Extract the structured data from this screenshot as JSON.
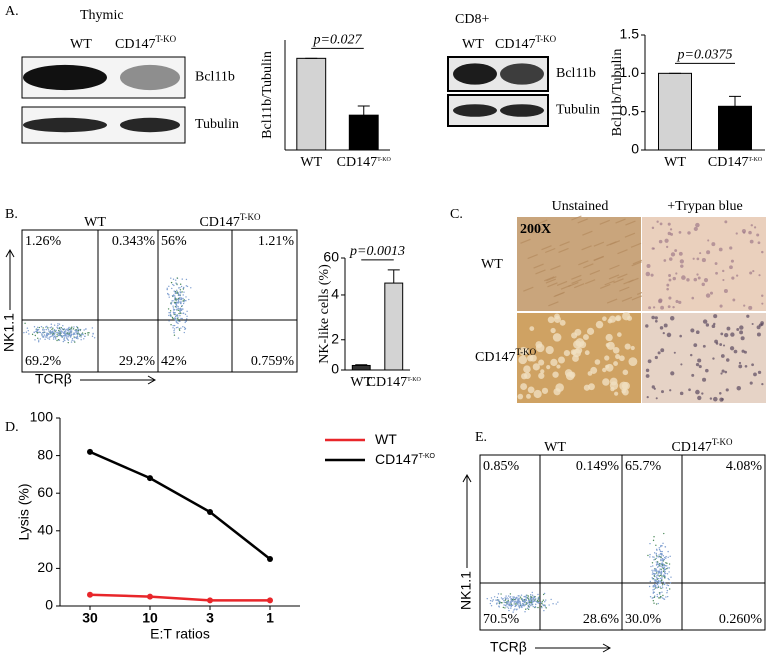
{
  "panel_labels": [
    "A.",
    "B.",
    "C.",
    "D.",
    "E."
  ],
  "blots": [
    {
      "title": "Thymic",
      "lanes": [
        {
          "text": "WT"
        },
        {
          "text": "CD147",
          "sup": "T-KO"
        }
      ],
      "bands": [
        "Bcl11b",
        "Tubulin"
      ]
    },
    {
      "title": "CD8+",
      "lanes": [
        {
          "text": "WT"
        },
        {
          "text": "CD147",
          "sup": "T-KO"
        }
      ],
      "bands": [
        "Bcl11b",
        "Tubulin"
      ]
    }
  ],
  "chart_data": [
    {
      "type": "bar",
      "y_label": "Bcl11b/Tubulin",
      "categories": [
        {
          "text": "WT"
        },
        {
          "text": "CD147",
          "sup": "T-KO"
        }
      ],
      "values": [
        1.0,
        0.38
      ],
      "errors": [
        0,
        0.1
      ],
      "colors": [
        "#d3d3d3",
        "#000000"
      ],
      "ylim": [
        0,
        1.2
      ],
      "annotation": "p=0.027"
    },
    {
      "type": "bar",
      "y_label": "Bcl11b/Tubulin",
      "categories": [
        {
          "text": "WT"
        },
        {
          "text": "CD147",
          "sup": "T-KO"
        }
      ],
      "values": [
        1.0,
        0.57
      ],
      "errors": [
        0,
        0.13
      ],
      "colors": [
        "#d3d3d3",
        "#000000"
      ],
      "ylim": [
        0,
        1.5
      ],
      "yticks": [
        0,
        0.5,
        {
          "value": 1,
          "label": "1.0"
        },
        1.5
      ],
      "annotation": "p=0.0375"
    },
    {
      "type": "bar",
      "y_label": "NK-like cells (%)",
      "categories": [
        {
          "text": "WT"
        },
        {
          "text": "CD147",
          "sup": "T-KO"
        }
      ],
      "values": [
        0.3,
        22
      ],
      "errors": [
        0.05,
        20
      ],
      "colors": [
        "#333333",
        "#d3d3d3"
      ],
      "ylim": [
        0,
        60
      ],
      "yticks": [
        0,
        2,
        4,
        60
      ],
      "broken_axis": true,
      "annotation": "p=0.0013"
    },
    {
      "type": "line",
      "y_label": "Lysis (%)",
      "x_label": "E:T ratios",
      "categories": [
        "30",
        "10",
        "3",
        "1"
      ],
      "ylim": [
        0,
        100
      ],
      "yticks": [
        0,
        20,
        40,
        60,
        80,
        100
      ],
      "legend": "top-right",
      "series": [
        {
          "name": {
            "text": "WT"
          },
          "color": "#e8262a",
          "values": [
            6,
            5,
            3,
            3
          ]
        },
        {
          "name": {
            "text": "CD147",
            "sup": "T-KO"
          },
          "color": "#000000",
          "values": [
            82,
            68,
            50,
            25
          ]
        }
      ]
    }
  ],
  "flow": [
    {
      "columns": [
        {
          "text": "WT"
        },
        {
          "text": "CD147",
          "sup": "T-KO"
        }
      ],
      "quadrants": [
        [
          "1.26%",
          "0.343%",
          "69.2%",
          "29.2%"
        ],
        [
          "56%",
          "1.21%",
          "42%",
          "0.759%"
        ]
      ],
      "y_label": "NK1.1",
      "x_label": "TCRβ"
    },
    {
      "columns": [
        {
          "text": "WT"
        },
        {
          "text": "CD147",
          "sup": "T-KO"
        }
      ],
      "quadrants": [
        [
          "0.85%",
          "0.149%",
          "70.5%",
          "28.6%"
        ],
        [
          "65.7%",
          "4.08%",
          "30.0%",
          "0.260%"
        ]
      ],
      "y_label": "NK1.1",
      "x_label": "TCRβ"
    }
  ],
  "micrographs": {
    "columns": [
      "Unstained",
      "+Trypan blue"
    ],
    "rows": [
      {
        "text": "WT"
      },
      {
        "text": "CD147",
        "sup": "T-KO"
      }
    ],
    "magnification": "200X"
  }
}
